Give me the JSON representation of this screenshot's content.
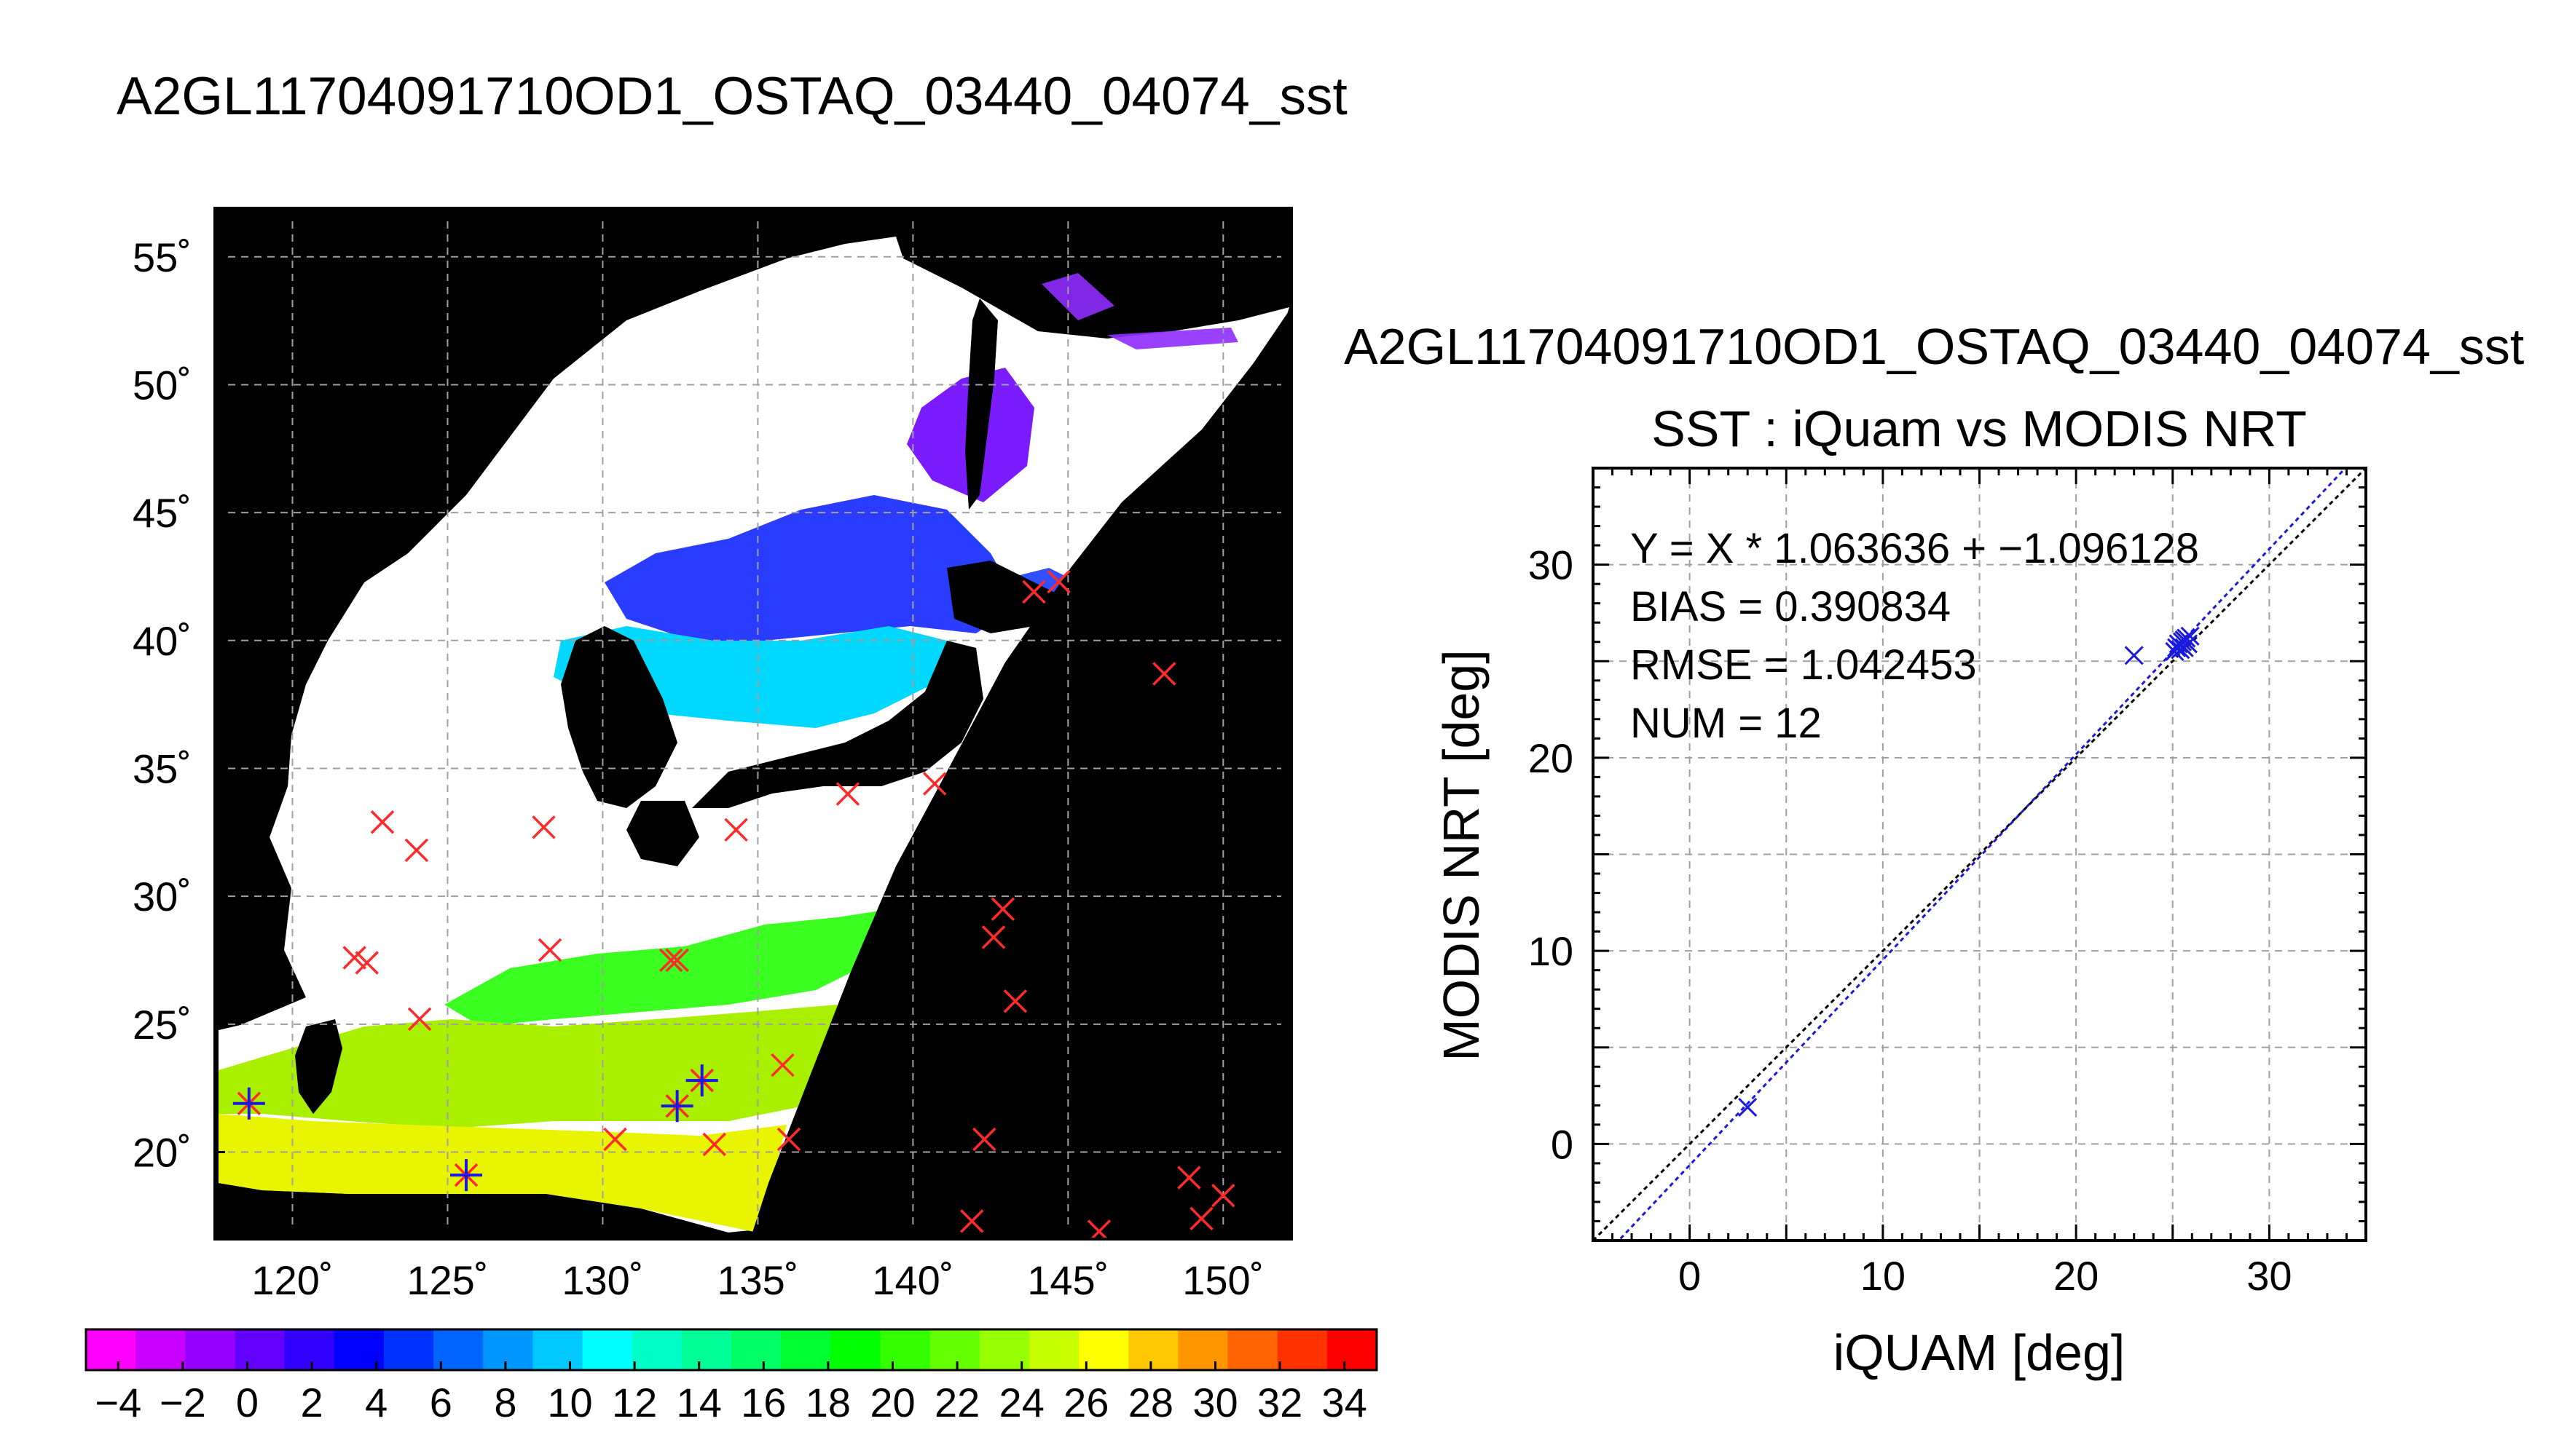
{
  "page_title": "A2GL11704091710OD1_OSTAQ_03440_04074_sst",
  "scatter_file_title": "A2GL11704091710OD1_OSTAQ_03440_04074_sst",
  "colors": {
    "background": "#ffffff",
    "map_background": "#000000",
    "cloud_mask": "#ffffff",
    "insitu_marker": "#ff2a2a",
    "matchup_marker": "#1a1adf",
    "fit_line": "#1a1adf",
    "identity_line": "#000000",
    "grid": "#a0a0a0"
  },
  "chart_data": [
    {
      "type": "heatmap",
      "subtype": "map",
      "title": "",
      "lon_ticks": [
        "120˚",
        "125˚",
        "130˚",
        "135˚",
        "140˚",
        "145˚",
        "150˚"
      ],
      "lon_values": [
        120,
        125,
        130,
        135,
        140,
        145,
        150
      ],
      "lat_ticks": [
        "55˚",
        "50˚",
        "45˚",
        "40˚",
        "35˚",
        "30˚",
        "25˚",
        "20˚"
      ],
      "lat_values": [
        55,
        50,
        45,
        40,
        35,
        30,
        25,
        20
      ],
      "xlim": [
        117.5,
        152.2
      ],
      "ylim": [
        16.6,
        56.9
      ],
      "grid": true,
      "insitu_points": [
        {
          "lon": 118.6,
          "lat": 21.9
        },
        {
          "lon": 122.0,
          "lat": 27.6
        },
        {
          "lon": 122.4,
          "lat": 27.4
        },
        {
          "lon": 122.9,
          "lat": 32.9
        },
        {
          "lon": 124.0,
          "lat": 31.8
        },
        {
          "lon": 124.1,
          "lat": 25.2
        },
        {
          "lon": 125.6,
          "lat": 19.1
        },
        {
          "lon": 128.1,
          "lat": 32.7
        },
        {
          "lon": 128.3,
          "lat": 27.9
        },
        {
          "lon": 130.4,
          "lat": 20.5
        },
        {
          "lon": 132.2,
          "lat": 27.5
        },
        {
          "lon": 132.4,
          "lat": 27.5
        },
        {
          "lon": 132.4,
          "lat": 21.8
        },
        {
          "lon": 133.2,
          "lat": 22.8
        },
        {
          "lon": 133.6,
          "lat": 20.3
        },
        {
          "lon": 134.3,
          "lat": 32.6
        },
        {
          "lon": 135.8,
          "lat": 23.4
        },
        {
          "lon": 136.0,
          "lat": 20.5
        },
        {
          "lon": 137.9,
          "lat": 34.0
        },
        {
          "lon": 140.7,
          "lat": 34.4
        },
        {
          "lon": 141.9,
          "lat": 17.3
        },
        {
          "lon": 142.3,
          "lat": 20.5
        },
        {
          "lon": 142.6,
          "lat": 28.4
        },
        {
          "lon": 142.9,
          "lat": 29.5
        },
        {
          "lon": 143.3,
          "lat": 25.9
        },
        {
          "lon": 143.9,
          "lat": 41.9
        },
        {
          "lon": 144.7,
          "lat": 42.3
        },
        {
          "lon": 146.0,
          "lat": 16.9
        },
        {
          "lon": 148.1,
          "lat": 38.7
        },
        {
          "lon": 148.9,
          "lat": 19.0
        },
        {
          "lon": 149.3,
          "lat": 17.4
        },
        {
          "lon": 150.0,
          "lat": 18.3
        }
      ],
      "matchup_points": [
        {
          "lon": 118.6,
          "lat": 21.9
        },
        {
          "lon": 125.6,
          "lat": 19.1
        },
        {
          "lon": 132.4,
          "lat": 21.8
        },
        {
          "lon": 133.2,
          "lat": 22.8
        }
      ]
    },
    {
      "type": "scatter",
      "title": "SST : iQuam vs MODIS NRT",
      "xlabel": "iQUAM [deg]",
      "ylabel": "MODIS NRT [deg]",
      "xlim": [
        -5,
        35
      ],
      "ylim": [
        -5,
        35
      ],
      "x_ticks": [
        0,
        10,
        20,
        30
      ],
      "y_ticks": [
        0,
        10,
        20,
        30
      ],
      "grid": true,
      "annotations": [
        "Y = X * 1.063636 + −1.096128",
        "BIAS = 0.390834",
        "RMSE = 1.042453",
        "NUM = 12"
      ],
      "fit": {
        "slope": 1.063636,
        "intercept": -1.096128
      },
      "identity_line": {
        "slope": 1,
        "intercept": 0
      },
      "points": [
        {
          "x": 3.0,
          "y": 1.9
        },
        {
          "x": 23.0,
          "y": 25.3
        },
        {
          "x": 25.1,
          "y": 25.5
        },
        {
          "x": 25.2,
          "y": 25.7
        },
        {
          "x": 25.3,
          "y": 25.9
        },
        {
          "x": 25.4,
          "y": 25.6
        },
        {
          "x": 25.5,
          "y": 26.0
        },
        {
          "x": 25.6,
          "y": 26.1
        },
        {
          "x": 25.6,
          "y": 25.7
        },
        {
          "x": 25.7,
          "y": 26.2
        },
        {
          "x": 25.8,
          "y": 25.9
        },
        {
          "x": 25.9,
          "y": 26.3
        }
      ]
    },
    {
      "type": "heatmap",
      "subtype": "colorbar",
      "range": [
        -5,
        35
      ],
      "tick_labels": [
        "−4",
        "−2",
        "0",
        "2",
        "4",
        "6",
        "8",
        "10",
        "12",
        "14",
        "16",
        "18",
        "20",
        "22",
        "24",
        "26",
        "28",
        "30",
        "32",
        "34"
      ],
      "tick_values": [
        -4,
        -2,
        0,
        2,
        4,
        6,
        8,
        10,
        12,
        14,
        16,
        18,
        20,
        22,
        24,
        26,
        28,
        30,
        32,
        34
      ],
      "colors": [
        "#ff00ff",
        "#c800ff",
        "#9600ff",
        "#6400ff",
        "#3200ff",
        "#0000ff",
        "#0032ff",
        "#0064ff",
        "#0096ff",
        "#00c8ff",
        "#00ffff",
        "#00ffc8",
        "#00ff96",
        "#00ff64",
        "#00ff32",
        "#00ff00",
        "#32ff00",
        "#64ff00",
        "#96ff00",
        "#c8ff00",
        "#ffff00",
        "#ffc800",
        "#ff9600",
        "#ff6400",
        "#ff3200",
        "#ff0000"
      ]
    }
  ]
}
